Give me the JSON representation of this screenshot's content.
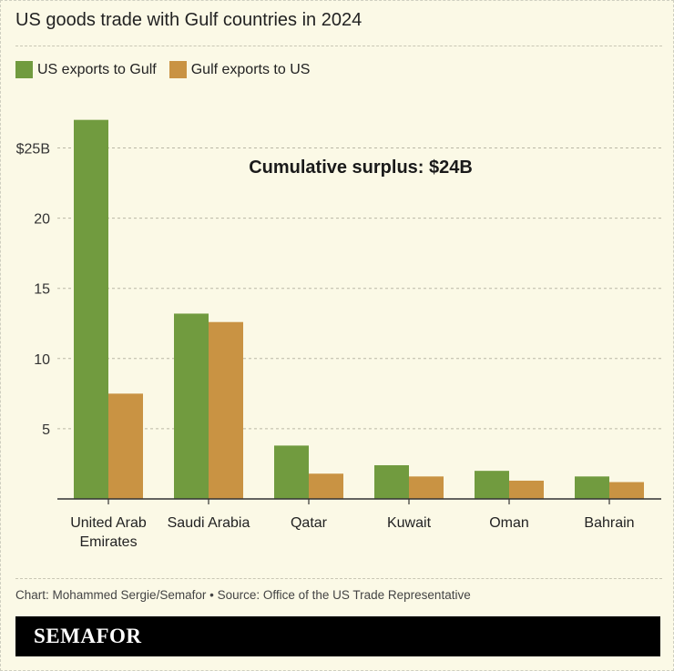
{
  "chart_data": {
    "type": "bar",
    "title": "US goods trade with Gulf countries in 2024",
    "annotation": "Cumulative surplus: $24B",
    "categories": [
      "United Arab Emirates",
      "Saudi Arabia",
      "Qatar",
      "Kuwait",
      "Oman",
      "Bahrain"
    ],
    "series": [
      {
        "name": "US exports to Gulf",
        "color": "#719b3f",
        "values": [
          27.0,
          13.2,
          3.8,
          2.4,
          2.0,
          1.6
        ]
      },
      {
        "name": "Gulf exports to US",
        "color": "#c99343",
        "values": [
          7.5,
          12.6,
          1.8,
          1.6,
          1.3,
          1.2
        ]
      }
    ],
    "yticks": [
      {
        "v": 5,
        "label": "5"
      },
      {
        "v": 10,
        "label": "10"
      },
      {
        "v": 15,
        "label": "15"
      },
      {
        "v": 20,
        "label": "20"
      },
      {
        "v": 25,
        "label": "$25B"
      }
    ],
    "ylim": [
      0,
      28
    ],
    "grid": true,
    "legend": "top-left",
    "xlabel": "",
    "ylabel": ""
  },
  "footer": {
    "source": "Chart: Mohammed Sergie/Semafor • Source: Office of the US Trade Representative",
    "brand": "SEMAFOR"
  }
}
